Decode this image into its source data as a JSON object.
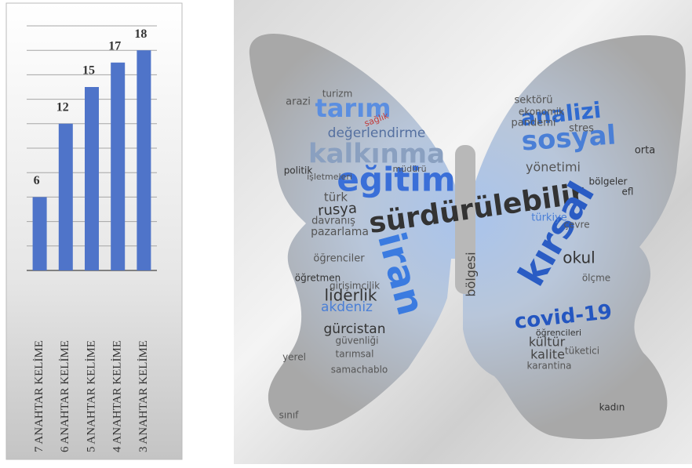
{
  "chart_data": [
    {
      "type": "bar",
      "categories": [
        "7 ANAHTAR KELİME",
        "6 ANAHTAR KELİME",
        "5 ANAHTAR KELİME",
        "4 ANAHTAR KELİME",
        "3 ANAHTAR KELİME"
      ],
      "values": [
        6,
        12,
        15,
        17,
        18
      ],
      "color": "#4f74c9",
      "ylim": [
        0,
        20
      ],
      "yticks": [
        0,
        2,
        4,
        6,
        8,
        10,
        12,
        14,
        16,
        18,
        20
      ],
      "grid": true
    },
    {
      "type": "wordcloud",
      "words": [
        "sürdürülebilir",
        "eğitim",
        "kırsal",
        "iran",
        "sosyal",
        "analizi",
        "tarım",
        "kalkınma",
        "covid-19",
        "değerlendirme",
        "rusya",
        "gürcistan",
        "akdeniz",
        "liderlik",
        "okul",
        "türkiye",
        "bölgesi",
        "yönetimi",
        "türk",
        "kültür",
        "kalite",
        "pazarlama",
        "öğrenciler",
        "davranış",
        "sektörü",
        "ekonomik",
        "pandemi",
        "stres",
        "turizm",
        "sağlık",
        "arazi",
        "politik",
        "öğretmen",
        "güvenliği",
        "tarımsal",
        "karantina",
        "tüketici",
        "kadın",
        "sınıf",
        "ölçme",
        "bölgeler",
        "efl",
        "orta",
        "yerel",
        "samachablo",
        "girişimcilik",
        "müdürü",
        "işletmeleri",
        "öğrencileri",
        "çevre"
      ]
    }
  ]
}
